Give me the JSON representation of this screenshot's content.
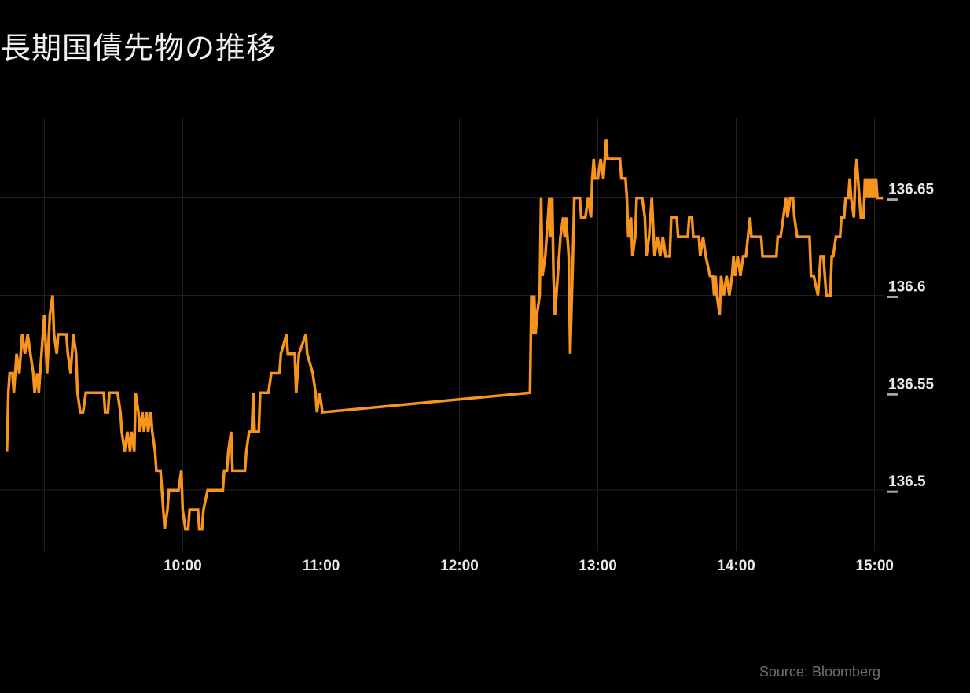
{
  "title": "長期国債先物の推移",
  "source_note": "Source: Bloomberg",
  "colors": {
    "background": "#000000",
    "line": "#f7941e",
    "grid": "#212121",
    "axis_text": "#e8e8e8",
    "tick_mark": "#a6a6a6",
    "title_text": "#f0f0f0",
    "source_text": "#6f6f6f"
  },
  "chart_data": {
    "type": "line",
    "title": "長期国債先物の推移",
    "grid": true,
    "legend_position": "none",
    "y_axis_side": "right",
    "x_unit": "hour_of_day",
    "x_range_hours": [
      8.68,
      15.07
    ],
    "y_range": [
      136.469,
      136.691
    ],
    "x_tick_hours": [
      9,
      10,
      11,
      12,
      13,
      14,
      15
    ],
    "x_tick_labels": [
      "",
      "10:00",
      "11:00",
      "12:00",
      "13:00",
      "14:00",
      "15:00"
    ],
    "y_ticks": [
      136.5,
      136.55,
      136.6,
      136.65
    ],
    "y_tick_labels": [
      "136.5",
      "136.55",
      "136.6",
      "136.65"
    ],
    "points": [
      [
        8.73,
        136.52
      ],
      [
        8.74,
        136.55
      ],
      [
        8.75,
        136.56
      ],
      [
        8.77,
        136.56
      ],
      [
        8.78,
        136.55
      ],
      [
        8.8,
        136.57
      ],
      [
        8.82,
        136.56
      ],
      [
        8.84,
        136.58
      ],
      [
        8.86,
        136.57
      ],
      [
        8.88,
        136.58
      ],
      [
        8.9,
        136.57
      ],
      [
        8.92,
        136.56
      ],
      [
        8.93,
        136.55
      ],
      [
        8.95,
        136.56
      ],
      [
        8.96,
        136.55
      ],
      [
        8.98,
        136.57
      ],
      [
        8.99,
        136.58
      ],
      [
        9.0,
        136.59
      ],
      [
        9.02,
        136.56
      ],
      [
        9.04,
        136.59
      ],
      [
        9.06,
        136.6
      ],
      [
        9.07,
        136.58
      ],
      [
        9.09,
        136.57
      ],
      [
        9.1,
        136.58
      ],
      [
        9.16,
        136.58
      ],
      [
        9.17,
        136.57
      ],
      [
        9.19,
        136.56
      ],
      [
        9.21,
        136.58
      ],
      [
        9.23,
        136.57
      ],
      [
        9.24,
        136.55
      ],
      [
        9.26,
        136.54
      ],
      [
        9.28,
        136.54
      ],
      [
        9.3,
        136.55
      ],
      [
        9.43,
        136.55
      ],
      [
        9.44,
        136.54
      ],
      [
        9.46,
        136.54
      ],
      [
        9.47,
        136.55
      ],
      [
        9.53,
        136.55
      ],
      [
        9.55,
        136.54
      ],
      [
        9.56,
        136.53
      ],
      [
        9.58,
        136.52
      ],
      [
        9.6,
        136.53
      ],
      [
        9.62,
        136.52
      ],
      [
        9.63,
        136.53
      ],
      [
        9.65,
        136.52
      ],
      [
        9.66,
        136.55
      ],
      [
        9.68,
        136.54
      ],
      [
        9.69,
        136.53
      ],
      [
        9.71,
        136.54
      ],
      [
        9.72,
        136.53
      ],
      [
        9.74,
        136.54
      ],
      [
        9.75,
        136.53
      ],
      [
        9.77,
        136.54
      ],
      [
        9.78,
        136.53
      ],
      [
        9.8,
        136.52
      ],
      [
        9.81,
        136.51
      ],
      [
        9.84,
        136.51
      ],
      [
        9.85,
        136.5
      ],
      [
        9.86,
        136.49
      ],
      [
        9.87,
        136.48
      ],
      [
        9.89,
        136.49
      ],
      [
        9.9,
        136.5
      ],
      [
        9.97,
        136.5
      ],
      [
        9.99,
        136.51
      ],
      [
        10.0,
        136.49
      ],
      [
        10.02,
        136.48
      ],
      [
        10.04,
        136.48
      ],
      [
        10.05,
        136.49
      ],
      [
        10.11,
        136.49
      ],
      [
        10.12,
        136.48
      ],
      [
        10.14,
        136.48
      ],
      [
        10.15,
        136.49
      ],
      [
        10.18,
        136.5
      ],
      [
        10.29,
        136.5
      ],
      [
        10.3,
        136.51
      ],
      [
        10.32,
        136.51
      ],
      [
        10.33,
        136.52
      ],
      [
        10.35,
        136.53
      ],
      [
        10.36,
        136.51
      ],
      [
        10.45,
        136.51
      ],
      [
        10.46,
        136.52
      ],
      [
        10.48,
        136.53
      ],
      [
        10.5,
        136.53
      ],
      [
        10.51,
        136.55
      ],
      [
        10.52,
        136.53
      ],
      [
        10.55,
        136.53
      ],
      [
        10.56,
        136.55
      ],
      [
        10.58,
        136.55
      ],
      [
        10.62,
        136.55
      ],
      [
        10.64,
        136.56
      ],
      [
        10.7,
        136.56
      ],
      [
        10.71,
        136.57
      ],
      [
        10.75,
        136.58
      ],
      [
        10.76,
        136.57
      ],
      [
        10.81,
        136.57
      ],
      [
        10.82,
        136.55
      ],
      [
        10.84,
        136.57
      ],
      [
        10.89,
        136.58
      ],
      [
        10.9,
        136.57
      ],
      [
        10.94,
        136.56
      ],
      [
        10.96,
        136.55
      ],
      [
        10.97,
        136.54
      ],
      [
        10.99,
        136.55
      ],
      [
        11.01,
        136.54
      ],
      [
        12.51,
        136.55
      ],
      [
        12.52,
        136.6
      ],
      [
        12.53,
        136.58
      ],
      [
        12.54,
        136.6
      ],
      [
        12.55,
        136.58
      ],
      [
        12.56,
        136.59
      ],
      [
        12.58,
        136.6
      ],
      [
        12.59,
        136.65
      ],
      [
        12.6,
        136.61
      ],
      [
        12.62,
        136.62
      ],
      [
        12.65,
        136.65
      ],
      [
        12.66,
        136.63
      ],
      [
        12.67,
        136.65
      ],
      [
        12.68,
        136.61
      ],
      [
        12.69,
        136.59
      ],
      [
        12.71,
        136.61
      ],
      [
        12.73,
        136.63
      ],
      [
        12.75,
        136.64
      ],
      [
        12.76,
        136.63
      ],
      [
        12.77,
        136.64
      ],
      [
        12.79,
        136.62
      ],
      [
        12.8,
        136.57
      ],
      [
        12.82,
        136.62
      ],
      [
        12.83,
        136.65
      ],
      [
        12.87,
        136.65
      ],
      [
        12.88,
        136.64
      ],
      [
        12.91,
        136.64
      ],
      [
        12.93,
        136.65
      ],
      [
        12.95,
        136.64
      ],
      [
        12.96,
        136.66
      ],
      [
        12.97,
        136.67
      ],
      [
        12.98,
        136.66
      ],
      [
        13.0,
        136.66
      ],
      [
        13.02,
        136.67
      ],
      [
        13.04,
        136.66
      ],
      [
        13.05,
        136.67
      ],
      [
        13.06,
        136.68
      ],
      [
        13.07,
        136.67
      ],
      [
        13.16,
        136.67
      ],
      [
        13.17,
        136.66
      ],
      [
        13.2,
        136.66
      ],
      [
        13.21,
        136.65
      ],
      [
        13.22,
        136.63
      ],
      [
        13.24,
        136.64
      ],
      [
        13.25,
        136.62
      ],
      [
        13.27,
        136.63
      ],
      [
        13.28,
        136.65
      ],
      [
        13.32,
        136.65
      ],
      [
        13.34,
        136.64
      ],
      [
        13.35,
        136.62
      ],
      [
        13.37,
        136.63
      ],
      [
        13.39,
        136.65
      ],
      [
        13.41,
        136.62
      ],
      [
        13.43,
        136.63
      ],
      [
        13.45,
        136.62
      ],
      [
        13.47,
        136.63
      ],
      [
        13.49,
        136.62
      ],
      [
        13.52,
        136.62
      ],
      [
        13.53,
        136.64
      ],
      [
        13.57,
        136.64
      ],
      [
        13.58,
        136.63
      ],
      [
        13.65,
        136.63
      ],
      [
        13.66,
        136.64
      ],
      [
        13.68,
        136.64
      ],
      [
        13.69,
        136.63
      ],
      [
        13.73,
        136.63
      ],
      [
        13.74,
        136.62
      ],
      [
        13.76,
        136.63
      ],
      [
        13.78,
        136.62
      ],
      [
        13.81,
        136.61
      ],
      [
        13.83,
        136.61
      ],
      [
        13.84,
        136.6
      ],
      [
        13.85,
        136.61
      ],
      [
        13.86,
        136.6
      ],
      [
        13.88,
        136.59
      ],
      [
        13.89,
        136.61
      ],
      [
        13.91,
        136.6
      ],
      [
        13.93,
        136.61
      ],
      [
        13.95,
        136.6
      ],
      [
        13.97,
        136.61
      ],
      [
        13.98,
        136.62
      ],
      [
        13.99,
        136.61
      ],
      [
        14.01,
        136.62
      ],
      [
        14.03,
        136.61
      ],
      [
        14.05,
        136.62
      ],
      [
        14.07,
        136.62
      ],
      [
        14.1,
        136.64
      ],
      [
        14.11,
        136.63
      ],
      [
        14.18,
        136.63
      ],
      [
        14.19,
        136.62
      ],
      [
        14.29,
        136.62
      ],
      [
        14.3,
        136.63
      ],
      [
        14.32,
        136.63
      ],
      [
        14.34,
        136.64
      ],
      [
        14.36,
        136.65
      ],
      [
        14.37,
        136.64
      ],
      [
        14.39,
        136.65
      ],
      [
        14.41,
        136.65
      ],
      [
        14.42,
        136.64
      ],
      [
        14.44,
        136.63
      ],
      [
        14.49,
        136.63
      ],
      [
        14.53,
        136.63
      ],
      [
        14.54,
        136.61
      ],
      [
        14.56,
        136.61
      ],
      [
        14.59,
        136.6
      ],
      [
        14.61,
        136.62
      ],
      [
        14.63,
        136.62
      ],
      [
        14.65,
        136.6
      ],
      [
        14.66,
        136.6
      ],
      [
        14.68,
        136.6
      ],
      [
        14.69,
        136.62
      ],
      [
        14.7,
        136.62
      ],
      [
        14.72,
        136.63
      ],
      [
        14.75,
        136.63
      ],
      [
        14.76,
        136.64
      ],
      [
        14.78,
        136.64
      ],
      [
        14.79,
        136.65
      ],
      [
        14.81,
        136.65
      ],
      [
        14.82,
        136.66
      ],
      [
        14.83,
        136.65
      ],
      [
        14.85,
        136.64
      ],
      [
        14.86,
        136.66
      ],
      [
        14.87,
        136.67
      ],
      [
        14.88,
        136.66
      ],
      [
        14.89,
        136.65
      ],
      [
        14.9,
        136.64
      ],
      [
        14.92,
        136.64
      ],
      [
        14.93,
        136.66
      ],
      [
        14.94,
        136.65
      ],
      [
        14.95,
        136.66
      ],
      [
        14.96,
        136.65
      ],
      [
        14.97,
        136.66
      ],
      [
        14.98,
        136.65
      ],
      [
        14.99,
        136.66
      ],
      [
        15.0,
        136.65
      ],
      [
        15.01,
        136.66
      ],
      [
        15.02,
        136.65
      ],
      [
        15.04,
        136.65
      ],
      [
        15.06,
        136.65
      ]
    ]
  }
}
